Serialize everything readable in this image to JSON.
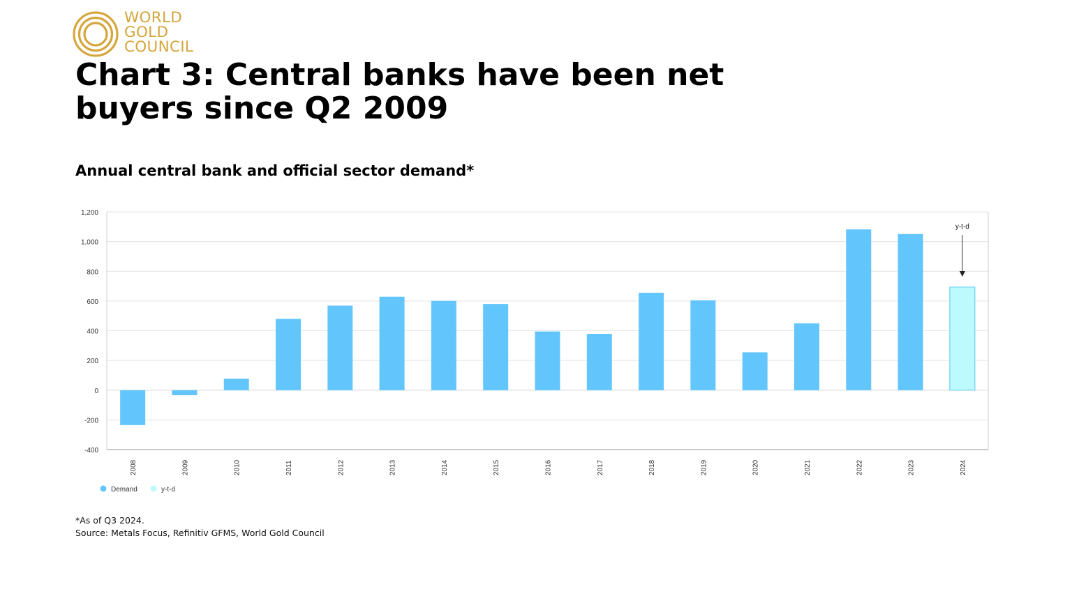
{
  "logo": {
    "lines": [
      "WORLD",
      "GOLD",
      "COUNCIL"
    ],
    "color": "#d5a63c"
  },
  "header": {
    "title_line1": "Chart 3: Central banks have been net",
    "title_line2": "buyers since Q2 2009",
    "subtitle": "Annual central bank and official sector demand*"
  },
  "chart_data": {
    "type": "bar",
    "title": "Annual central bank and official sector demand*",
    "categories": [
      "2008",
      "2009",
      "2010",
      "2011",
      "2012",
      "2013",
      "2014",
      "2015",
      "2016",
      "2017",
      "2018",
      "2019",
      "2020",
      "2021",
      "2022",
      "2023",
      "2024"
    ],
    "series": [
      {
        "name": "Demand",
        "color": "#62c6fd",
        "values": [
          -235,
          -34,
          77,
          480,
          569,
          629,
          601,
          580,
          395,
          379,
          656,
          605,
          255,
          450,
          1082,
          1051,
          null
        ]
      },
      {
        "name": "y-t-d",
        "color": "#bcfafd",
        "stroke": "#5ec7f5",
        "values": [
          null,
          null,
          null,
          null,
          null,
          null,
          null,
          null,
          null,
          null,
          null,
          null,
          null,
          null,
          null,
          null,
          694
        ]
      }
    ],
    "yticks": [
      -400,
      -200,
      0,
      200,
      400,
      600,
      800,
      1000,
      1200
    ],
    "ytick_labels": [
      "-400",
      "-200",
      "0",
      "200",
      "400",
      "600",
      "800",
      "1,000",
      "1,200"
    ],
    "ylim": [
      -400,
      1200
    ],
    "xlabel": "",
    "ylabel": "",
    "grid": true,
    "legend_position": "bottom-left",
    "annotation": {
      "text": "y-t-d",
      "category": "2024"
    }
  },
  "footnotes": {
    "note": "*As of Q3 2024.",
    "source": "Source: Metals Focus, Refinitiv GFMS, World Gold Council"
  }
}
